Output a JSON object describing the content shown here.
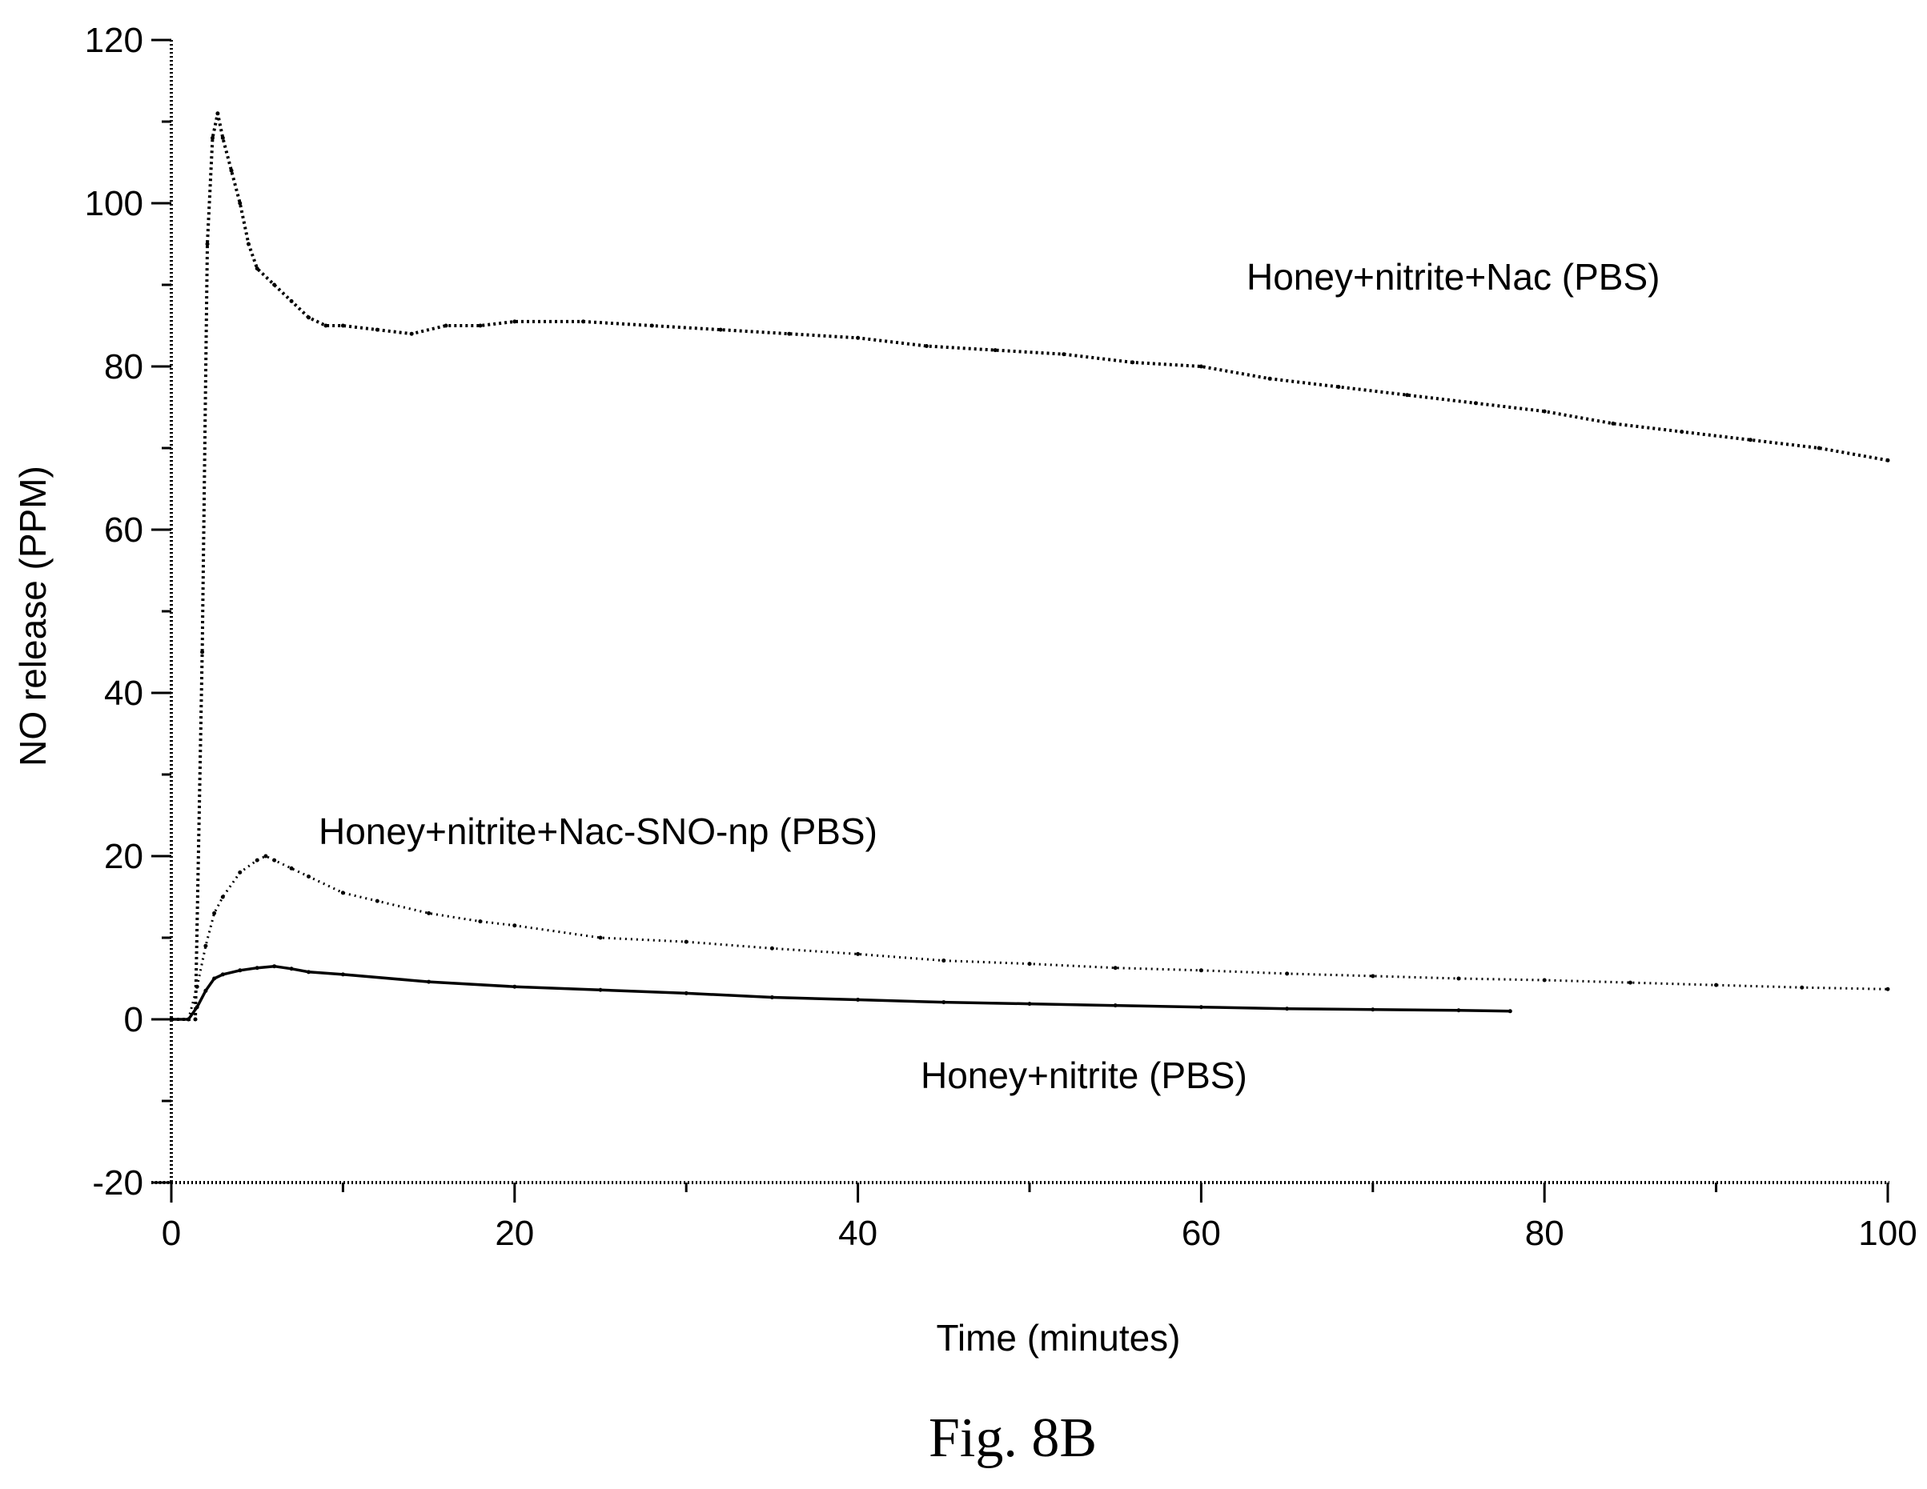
{
  "figure": {
    "caption": "Fig. 8B"
  },
  "chart_data": {
    "type": "line",
    "xlabel": "Time (minutes)",
    "ylabel": "NO release (PPM)",
    "xlim": [
      0,
      100
    ],
    "ylim": [
      -20,
      120
    ],
    "xticks": [
      "0",
      "20",
      "40",
      "60",
      "80",
      "100"
    ],
    "yticks": [
      "-20",
      "0",
      "20",
      "40",
      "60",
      "80",
      "100",
      "120"
    ],
    "grid": false,
    "legend": "none",
    "series": [
      {
        "name": "Honey+nitrite+Nac (PBS)",
        "style": "dotted-heavy",
        "x": [
          0,
          1.4,
          1.8,
          2.1,
          2.4,
          2.7,
          3.0,
          3.5,
          4.0,
          4.5,
          5.0,
          6.0,
          7.0,
          8.0,
          9.0,
          10,
          12,
          14,
          16,
          18,
          20,
          24,
          28,
          32,
          36,
          40,
          44,
          48,
          52,
          56,
          60,
          64,
          68,
          72,
          76,
          80,
          84,
          88,
          92,
          96,
          100
        ],
        "y": [
          0,
          0,
          45,
          95,
          108,
          111,
          108,
          104,
          100,
          95,
          92,
          90,
          88,
          86,
          85,
          85,
          84.5,
          84,
          85,
          85,
          85.5,
          85.5,
          85,
          84.5,
          84,
          83.5,
          82.5,
          82,
          81.5,
          80.5,
          80,
          78.5,
          77.5,
          76.5,
          75.5,
          74.5,
          73,
          72,
          71,
          70,
          68.5
        ]
      },
      {
        "name": "Honey+nitrite+Nac-SNO-np (PBS)",
        "style": "dotted-light",
        "x": [
          0,
          1.0,
          1.5,
          2.0,
          2.5,
          3.0,
          4.0,
          5.0,
          5.5,
          6.0,
          7.0,
          8.0,
          10,
          12,
          15,
          18,
          20,
          25,
          30,
          35,
          40,
          45,
          50,
          55,
          60,
          65,
          70,
          75,
          80,
          85,
          90,
          95,
          100
        ],
        "y": [
          0,
          0,
          4,
          9,
          13,
          15,
          18,
          19.5,
          20,
          19.5,
          18.5,
          17.5,
          15.5,
          14.5,
          13,
          12,
          11.5,
          10,
          9.5,
          8.7,
          8.0,
          7.2,
          6.8,
          6.3,
          6.0,
          5.6,
          5.3,
          5.0,
          4.8,
          4.5,
          4.2,
          3.9,
          3.7
        ]
      },
      {
        "name": "Honey+nitrite (PBS)",
        "style": "solid",
        "x": [
          0,
          1.0,
          1.5,
          2.0,
          2.5,
          3.0,
          4.0,
          5.0,
          6.0,
          7.0,
          8.0,
          10,
          15,
          20,
          25,
          30,
          35,
          40,
          45,
          50,
          55,
          60,
          65,
          70,
          75,
          78
        ],
        "y": [
          0,
          0,
          1.5,
          3.5,
          5,
          5.5,
          6,
          6.3,
          6.5,
          6.2,
          5.8,
          5.5,
          4.6,
          4.0,
          3.6,
          3.2,
          2.7,
          2.4,
          2.1,
          1.9,
          1.7,
          1.5,
          1.3,
          1.2,
          1.1,
          1.0
        ]
      }
    ]
  }
}
